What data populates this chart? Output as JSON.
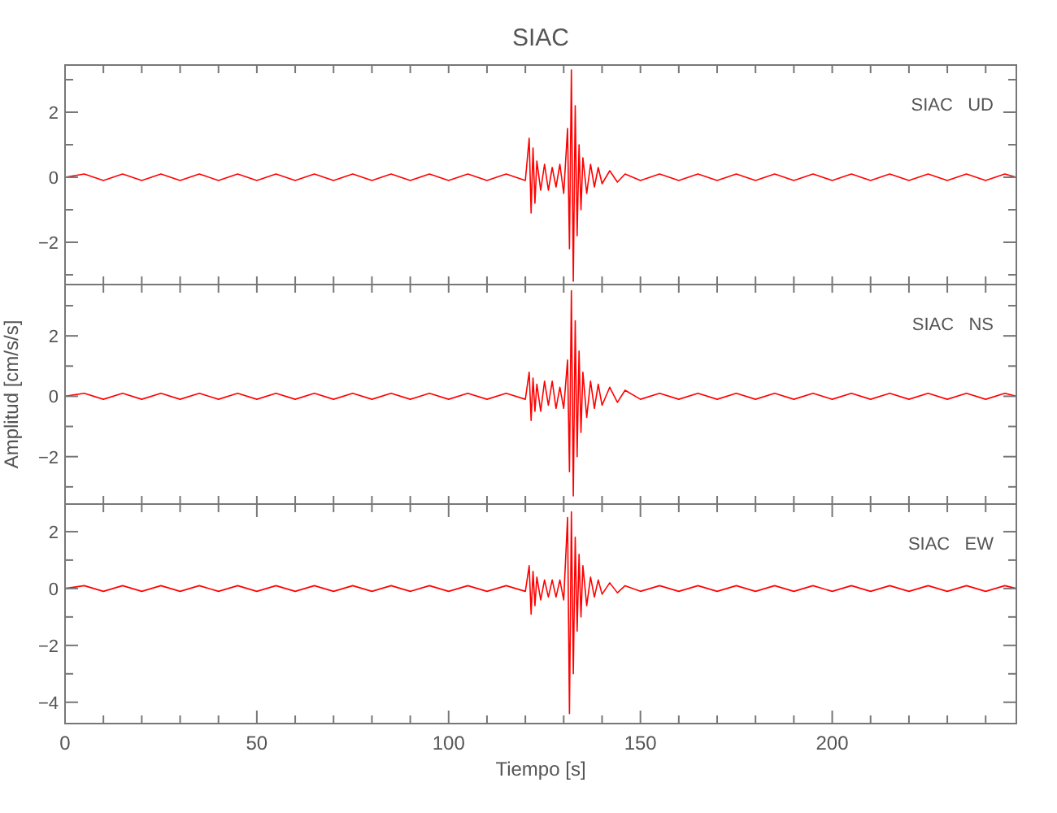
{
  "chart_data": [
    {
      "type": "line",
      "title": "SIAC",
      "annotations": [
        "SIAC   UD"
      ],
      "tick_labels": "y",
      "xlim": [
        0,
        248
      ],
      "ylim": [
        -3.3,
        3.45
      ],
      "xticks": [
        {
          "value": 0,
          "label": null
        },
        {
          "value": 10,
          "label": null
        },
        {
          "value": 20,
          "label": null
        },
        {
          "value": 30,
          "label": null
        },
        {
          "value": 40,
          "label": null
        },
        {
          "value": 50,
          "label": null
        },
        {
          "value": 60,
          "label": null
        },
        {
          "value": 70,
          "label": null
        },
        {
          "value": 80,
          "label": null
        },
        {
          "value": 90,
          "label": null
        },
        {
          "value": 100,
          "label": null
        },
        {
          "value": 110,
          "label": null
        },
        {
          "value": 120,
          "label": null
        },
        {
          "value": 130,
          "label": null
        },
        {
          "value": 140,
          "label": null
        },
        {
          "value": 150,
          "label": null
        },
        {
          "value": 160,
          "label": null
        },
        {
          "value": 170,
          "label": null
        },
        {
          "value": 180,
          "label": null
        },
        {
          "value": 190,
          "label": null
        },
        {
          "value": 200,
          "label": null
        },
        {
          "value": 210,
          "label": null
        },
        {
          "value": 220,
          "label": null
        },
        {
          "value": 230,
          "label": null
        },
        {
          "value": 240,
          "label": null
        }
      ],
      "yticks": [
        {
          "value": -3,
          "label": null
        },
        -2,
        {
          "value": -1,
          "label": null
        },
        0,
        {
          "value": 1,
          "label": null
        },
        2,
        {
          "value": 3,
          "label": null
        }
      ],
      "series": [
        {
          "color": "#ff0000",
          "x": [
            0,
            5,
            10,
            15,
            20,
            25,
            30,
            35,
            40,
            45,
            50,
            55,
            60,
            65,
            70,
            75,
            80,
            85,
            90,
            95,
            100,
            105,
            110,
            115,
            120,
            121,
            121.5,
            122,
            122.5,
            123,
            124,
            125,
            126,
            127,
            128,
            129,
            130,
            131,
            131.5,
            132,
            132.5,
            133,
            133.5,
            134,
            134.5,
            135,
            136,
            137,
            138,
            139,
            140,
            142,
            144,
            146,
            150,
            155,
            160,
            165,
            170,
            175,
            180,
            185,
            190,
            195,
            200,
            205,
            210,
            215,
            220,
            225,
            230,
            235,
            240,
            245,
            248
          ],
          "values": [
            0,
            0.1,
            -0.1,
            0.1,
            -0.1,
            0.1,
            -0.1,
            0.1,
            -0.1,
            0.1,
            -0.1,
            0.1,
            -0.1,
            0.1,
            -0.1,
            0.1,
            -0.1,
            0.1,
            -0.1,
            0.1,
            -0.1,
            0.1,
            -0.1,
            0.1,
            -0.1,
            1.2,
            -1.1,
            0.9,
            -0.8,
            0.5,
            -0.4,
            0.4,
            -0.4,
            0.3,
            -0.3,
            0.4,
            -0.5,
            1.5,
            -2.2,
            3.3,
            -3.2,
            2.2,
            -1.8,
            1.0,
            -1.0,
            0.6,
            -0.5,
            0.4,
            -0.3,
            0.3,
            -0.2,
            0.2,
            -0.15,
            0.1,
            -0.1,
            0.1,
            -0.1,
            0.1,
            -0.1,
            0.1,
            -0.1,
            0.1,
            -0.1,
            0.1,
            -0.1,
            0.1,
            -0.1,
            0.1,
            -0.1,
            0.1,
            -0.1,
            0.1,
            -0.1,
            0.1,
            0
          ]
        }
      ]
    },
    {
      "type": "line",
      "ylabel": "Amplitud [cm/s/s]",
      "annotations": [
        "SIAC   NS"
      ],
      "tick_labels": "y",
      "xlim": [
        0,
        248
      ],
      "ylim": [
        -3.57,
        3.7
      ],
      "xticks": [
        {
          "value": 0,
          "label": null
        },
        {
          "value": 10,
          "label": null
        },
        {
          "value": 20,
          "label": null
        },
        {
          "value": 30,
          "label": null
        },
        {
          "value": 40,
          "label": null
        },
        {
          "value": 50,
          "label": null
        },
        {
          "value": 60,
          "label": null
        },
        {
          "value": 70,
          "label": null
        },
        {
          "value": 80,
          "label": null
        },
        {
          "value": 90,
          "label": null
        },
        {
          "value": 100,
          "label": null
        },
        {
          "value": 110,
          "label": null
        },
        {
          "value": 120,
          "label": null
        },
        {
          "value": 130,
          "label": null
        },
        {
          "value": 140,
          "label": null
        },
        {
          "value": 150,
          "label": null
        },
        {
          "value": 160,
          "label": null
        },
        {
          "value": 170,
          "label": null
        },
        {
          "value": 180,
          "label": null
        },
        {
          "value": 190,
          "label": null
        },
        {
          "value": 200,
          "label": null
        },
        {
          "value": 210,
          "label": null
        },
        {
          "value": 220,
          "label": null
        },
        {
          "value": 230,
          "label": null
        },
        {
          "value": 240,
          "label": null
        }
      ],
      "yticks": [
        {
          "value": -3,
          "label": null
        },
        -2,
        {
          "value": -1,
          "label": null
        },
        0,
        {
          "value": 1,
          "label": null
        },
        2,
        {
          "value": 3,
          "label": null
        }
      ],
      "series": [
        {
          "color": "#ff0000",
          "x": [
            0,
            5,
            10,
            15,
            20,
            25,
            30,
            35,
            40,
            45,
            50,
            55,
            60,
            65,
            70,
            75,
            80,
            85,
            90,
            95,
            100,
            105,
            110,
            115,
            120,
            121,
            121.5,
            122,
            122.5,
            123,
            124,
            125,
            126,
            127,
            128,
            129,
            130,
            131,
            131.5,
            132,
            132.5,
            133,
            133.5,
            134,
            134.5,
            135,
            136,
            137,
            138,
            139,
            140,
            142,
            144,
            146,
            150,
            155,
            160,
            165,
            170,
            175,
            180,
            185,
            190,
            195,
            200,
            205,
            210,
            215,
            220,
            225,
            230,
            235,
            240,
            245,
            248
          ],
          "values": [
            0,
            0.1,
            -0.1,
            0.1,
            -0.1,
            0.1,
            -0.1,
            0.1,
            -0.1,
            0.1,
            -0.1,
            0.1,
            -0.1,
            0.1,
            -0.1,
            0.1,
            -0.1,
            0.1,
            -0.1,
            0.1,
            -0.1,
            0.1,
            -0.1,
            0.1,
            -0.1,
            0.8,
            -0.8,
            0.6,
            -0.5,
            0.4,
            -0.5,
            0.5,
            -0.3,
            0.5,
            -0.4,
            0.3,
            -0.4,
            1.2,
            -2.5,
            3.5,
            -3.3,
            2.5,
            -2.0,
            1.5,
            -1.2,
            0.8,
            -0.7,
            0.5,
            -0.4,
            0.4,
            -0.3,
            0.3,
            -0.2,
            0.2,
            -0.1,
            0.1,
            -0.1,
            0.1,
            -0.1,
            0.1,
            -0.1,
            0.1,
            -0.1,
            0.1,
            -0.1,
            0.1,
            -0.1,
            0.1,
            -0.1,
            0.1,
            -0.1,
            0.1,
            -0.1,
            0.1,
            0
          ]
        }
      ]
    },
    {
      "type": "line",
      "xlabel": "Tiempo [s]",
      "annotations": [
        "SIAC   EW"
      ],
      "xlim": [
        0,
        248
      ],
      "ylim": [
        -4.75,
        2.97
      ],
      "xticks": [
        0,
        {
          "value": 10,
          "label": null
        },
        {
          "value": 20,
          "label": null
        },
        {
          "value": 30,
          "label": null
        },
        {
          "value": 40,
          "label": null
        },
        50,
        {
          "value": 60,
          "label": null
        },
        {
          "value": 70,
          "label": null
        },
        {
          "value": 80,
          "label": null
        },
        {
          "value": 90,
          "label": null
        },
        100,
        {
          "value": 110,
          "label": null
        },
        {
          "value": 120,
          "label": null
        },
        {
          "value": 130,
          "label": null
        },
        {
          "value": 140,
          "label": null
        },
        150,
        {
          "value": 160,
          "label": null
        },
        {
          "value": 170,
          "label": null
        },
        {
          "value": 180,
          "label": null
        },
        {
          "value": 190,
          "label": null
        },
        200,
        {
          "value": 210,
          "label": null
        },
        {
          "value": 220,
          "label": null
        },
        {
          "value": 230,
          "label": null
        },
        {
          "value": 240,
          "label": null
        }
      ],
      "yticks": [
        -4,
        {
          "value": -3,
          "label": null
        },
        -2,
        {
          "value": -1,
          "label": null
        },
        0,
        {
          "value": 1,
          "label": null
        },
        2
      ],
      "series": [
        {
          "color": "#ff0000",
          "x": [
            0,
            5,
            10,
            15,
            20,
            25,
            30,
            35,
            40,
            45,
            50,
            55,
            60,
            65,
            70,
            75,
            80,
            85,
            90,
            95,
            100,
            105,
            110,
            115,
            120,
            121,
            121.5,
            122,
            122.5,
            123,
            124,
            125,
            126,
            127,
            128,
            129,
            130,
            131,
            131.5,
            132,
            132.5,
            133,
            133.5,
            134,
            134.5,
            135,
            136,
            137,
            138,
            139,
            140,
            142,
            144,
            146,
            150,
            155,
            160,
            165,
            170,
            175,
            180,
            185,
            190,
            195,
            200,
            205,
            210,
            215,
            220,
            225,
            230,
            235,
            240,
            245,
            248
          ],
          "values": [
            0,
            0.1,
            -0.1,
            0.1,
            -0.1,
            0.1,
            -0.1,
            0.1,
            -0.1,
            0.1,
            -0.1,
            0.1,
            -0.1,
            0.1,
            -0.1,
            0.1,
            -0.1,
            0.1,
            -0.1,
            0.1,
            -0.1,
            0.1,
            -0.1,
            0.1,
            -0.1,
            0.8,
            -0.9,
            0.6,
            -0.6,
            0.4,
            -0.4,
            0.3,
            -0.3,
            0.3,
            -0.3,
            0.3,
            -0.4,
            2.5,
            -4.4,
            2.7,
            -3.0,
            1.8,
            -1.5,
            1.2,
            -1.0,
            0.8,
            -0.6,
            0.4,
            -0.3,
            0.3,
            -0.2,
            0.2,
            -0.15,
            0.1,
            -0.1,
            0.1,
            -0.1,
            0.1,
            -0.1,
            0.1,
            -0.1,
            0.1,
            -0.1,
            0.1,
            -0.1,
            0.1,
            -0.1,
            0.1,
            -0.1,
            0.1,
            -0.1,
            0.1,
            -0.1,
            0.1,
            0
          ]
        }
      ]
    }
  ]
}
